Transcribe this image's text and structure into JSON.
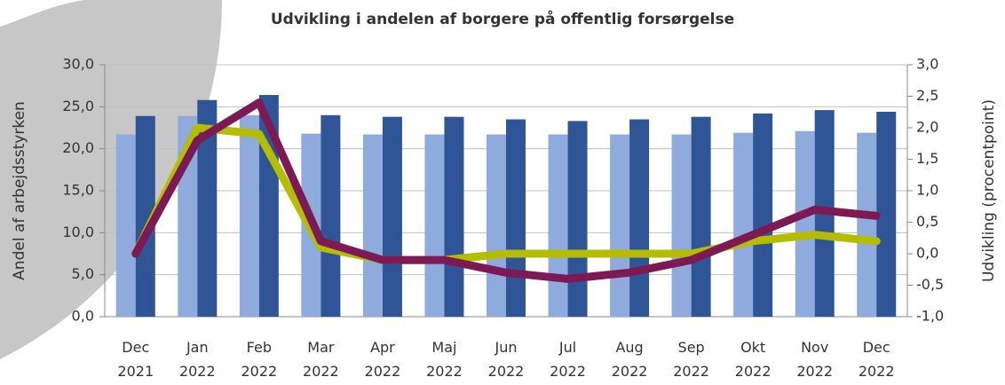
{
  "chart_data": {
    "type": "combo",
    "title": "Udvikling i andelen af borgere på offentlig forsørgelse",
    "y_label": "Andel af arbejdsstyrken",
    "y2_label": "Udvikling (procentpoint)",
    "categories": [
      "Dec 2021",
      "Jan 2022",
      "Feb 2022",
      "Mar 2022",
      "Apr 2022",
      "Maj 2022",
      "Jun 2022",
      "Jul 2022",
      "Aug 2022",
      "Sep 2022",
      "Okt 2022",
      "Nov 2022",
      "Dec 2022"
    ],
    "ylim": [
      0,
      30
    ],
    "yticks": [
      {
        "value": 0,
        "label": "0,0"
      },
      {
        "value": 5,
        "label": "5,0"
      },
      {
        "value": 10,
        "label": "10,0"
      },
      {
        "value": 15,
        "label": "15,0"
      },
      {
        "value": 20,
        "label": "20,0"
      },
      {
        "value": 25,
        "label": "25,0"
      },
      {
        "value": 30,
        "label": "30,0"
      }
    ],
    "y2lim": [
      -1,
      3
    ],
    "y2ticks": [
      {
        "value": -1,
        "label": "-1,0"
      },
      {
        "value": -0.5,
        "label": "-0,5"
      },
      {
        "value": 0,
        "label": "0,0"
      },
      {
        "value": 0.5,
        "label": "0,5"
      },
      {
        "value": 1,
        "label": "1,0"
      },
      {
        "value": 1.5,
        "label": "1,5"
      },
      {
        "value": 2,
        "label": "2,0"
      },
      {
        "value": 2.5,
        "label": "2,5"
      },
      {
        "value": 3,
        "label": "3,0"
      }
    ],
    "grid": true,
    "series": [
      {
        "type": "bar",
        "color": "#8faadc",
        "values": [
          21.7,
          23.9,
          24.0,
          21.8,
          21.7,
          21.7,
          21.7,
          21.7,
          21.7,
          21.7,
          21.9,
          22.1,
          21.9
        ]
      },
      {
        "type": "bar",
        "color": "#2f5597",
        "values": [
          23.9,
          25.8,
          26.4,
          24.0,
          23.8,
          23.8,
          23.5,
          23.3,
          23.5,
          23.8,
          24.2,
          24.6,
          24.4
        ]
      },
      {
        "type": "line",
        "axis": "y2",
        "color": "#b5bd00",
        "values": [
          0.0,
          2.0,
          1.9,
          0.1,
          -0.1,
          -0.1,
          0.0,
          0.0,
          0.0,
          0.0,
          0.2,
          0.3,
          0.2
        ]
      },
      {
        "type": "line",
        "axis": "y2",
        "color": "#7d1a55",
        "values": [
          0.0,
          1.8,
          2.4,
          0.2,
          -0.1,
          -0.1,
          -0.3,
          -0.4,
          -0.3,
          -0.1,
          0.3,
          0.7,
          0.6
        ]
      }
    ]
  }
}
